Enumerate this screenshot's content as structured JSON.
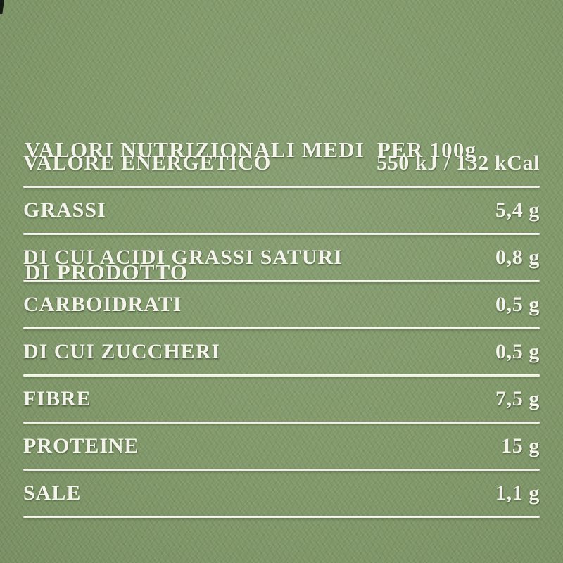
{
  "label": {
    "title_line1": "VALORI NUTRIZIONALI MEDI  PER 100g",
    "title_line2": "DI PRODOTTO",
    "colors": {
      "background_green": "#81996a",
      "text_white": "#f4f3ec"
    },
    "table": {
      "rows": [
        {
          "label": "VALORE ENERGETICO",
          "value": "550 kJ / 132 kCal"
        },
        {
          "label": "GRASSI",
          "value": "5,4 g"
        },
        {
          "label": "DI CUI ACIDI GRASSI SATURI",
          "value": "0,8 g"
        },
        {
          "label": "CARBOIDRATI",
          "value": "0,5 g"
        },
        {
          "label": "DI CUI ZUCCHERI",
          "value": "0,5 g"
        },
        {
          "label": "FIBRE",
          "value": "7,5 g"
        },
        {
          "label": "PROTEINE",
          "value": "15 g"
        },
        {
          "label": "SALE",
          "value": "1,1 g"
        }
      ]
    }
  }
}
